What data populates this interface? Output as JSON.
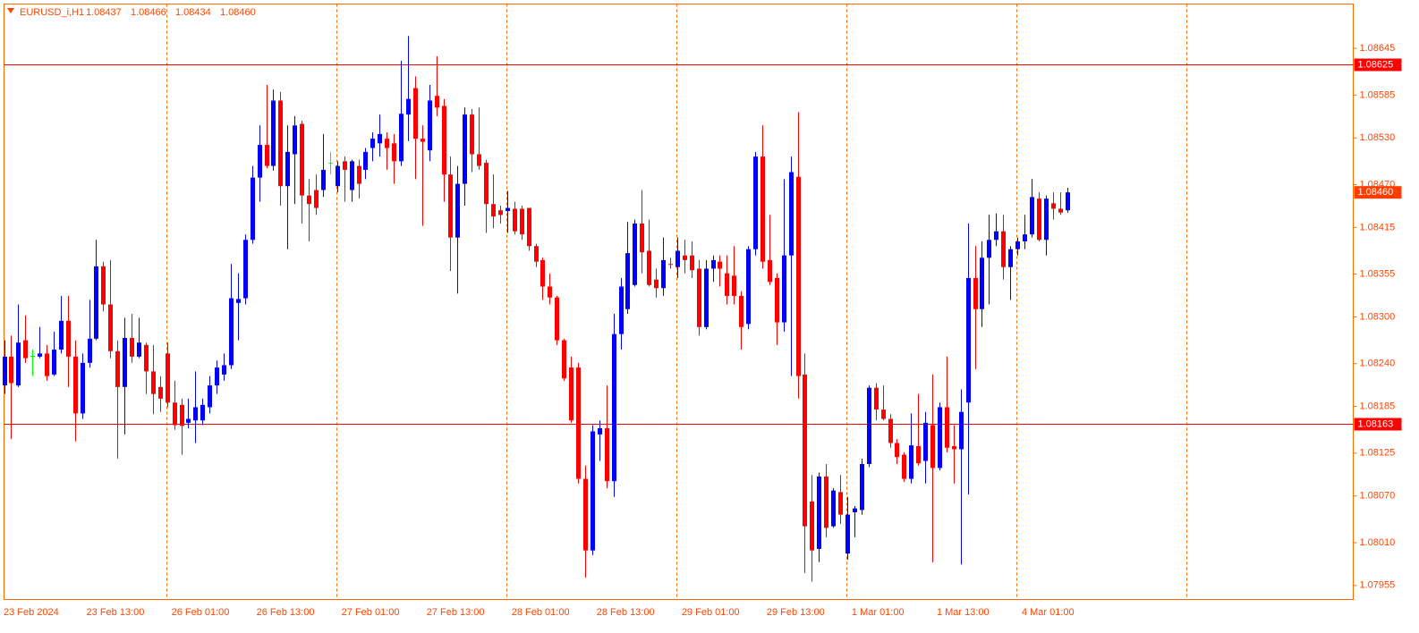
{
  "chart_data": {
    "type": "candlestick",
    "symbol": "EURUSD_i,H1",
    "ohlc_labels": [
      "1.08437",
      "1.08466",
      "1.08434",
      "1.08460"
    ],
    "up_color": "#0000ff",
    "down_color": "#ff0000",
    "doji_color": "#00ff00",
    "line_color": "#ff0000",
    "tag_color": "#ff3c00",
    "categories": [
      "23 Feb 2024",
      null,
      null,
      null,
      null,
      null,
      null,
      null,
      null,
      null,
      null,
      null,
      "23 Feb 13:00",
      null,
      null,
      null,
      null,
      null,
      null,
      null,
      null,
      null,
      null,
      null,
      "26 Feb 01:00",
      null,
      null,
      null,
      null,
      null,
      null,
      null,
      null,
      null,
      null,
      null,
      "26 Feb 13:00",
      null,
      null,
      null,
      null,
      null,
      null,
      null,
      null,
      null,
      null,
      null,
      "27 Feb 01:00",
      null,
      null,
      null,
      null,
      null,
      null,
      null,
      null,
      null,
      null,
      null,
      "27 Feb 13:00",
      null,
      null,
      null,
      null,
      null,
      null,
      null,
      null,
      null,
      null,
      null,
      "28 Feb 01:00",
      null,
      null,
      null,
      null,
      null,
      null,
      null,
      null,
      null,
      null,
      null,
      "28 Feb 13:00",
      null,
      null,
      null,
      null,
      null,
      null,
      null,
      null,
      null,
      null,
      null,
      "29 Feb 01:00",
      null,
      null,
      null,
      null,
      null,
      null,
      null,
      null,
      null,
      null,
      null,
      "29 Feb 13:00",
      null,
      null,
      null,
      null,
      null,
      null,
      null,
      null,
      null,
      null,
      null,
      "1 Mar 01:00",
      null,
      null,
      null,
      null,
      null,
      null,
      null,
      null,
      null,
      null,
      null,
      "1 Mar 13:00",
      null,
      null,
      null,
      null,
      null,
      null,
      null,
      null,
      null,
      null,
      null,
      "4 Mar 01:00",
      null,
      null,
      null,
      null,
      null,
      null
    ],
    "open": [
      1.08212,
      1.08249,
      1.08212,
      1.0827,
      1.0825,
      1.08249,
      1.08253,
      1.08226,
      1.08258,
      1.08295,
      1.08249,
      1.08176,
      1.08241,
      1.08272,
      1.08365,
      1.08316,
      1.08256,
      1.0821,
      1.08273,
      1.08249,
      1.08264,
      1.0823,
      1.0821,
      1.08253,
      1.0819,
      1.08187,
      1.08164,
      1.08167,
      1.08167,
      1.08184,
      1.08212,
      1.08226,
      1.08238,
      1.08318,
      1.08324,
      1.08399,
      1.08479,
      1.08521,
      1.08494,
      1.08578,
      1.08468,
      1.08509,
      1.08548,
      1.08456,
      1.08463,
      1.08463,
      1.08498,
      1.08468,
      1.085,
      1.08463,
      1.08494,
      1.08489,
      1.08517,
      1.08523,
      1.08529,
      1.08523,
      1.085,
      1.0856,
      1.08594,
      1.08529,
      1.08514,
      1.08584,
      1.08571,
      1.08483,
      1.08402,
      1.08471,
      1.0856,
      1.08509,
      1.08498,
      1.08445,
      1.08437,
      1.08436,
      1.08439,
      1.08439,
      1.0844,
      1.08391,
      1.08373,
      1.08339,
      1.08325,
      1.0827,
      1.08235,
      1.08235,
      1.08092,
      1.08,
      1.08149,
      1.08157,
      1.08089,
      1.08278,
      1.0831,
      1.08341,
      1.0842,
      1.08385,
      1.08348,
      1.08337,
      1.08368,
      1.08364,
      1.08379,
      1.08379,
      1.08362,
      1.08287,
      1.08362,
      1.08371,
      1.08356,
      1.08353,
      1.08327,
      1.08291,
      1.08387,
      1.08506,
      1.08373,
      1.0835,
      1.08293,
      1.08379,
      1.0848,
      1.08226,
      1.08063,
      1.08002,
      1.08095,
      1.08031,
      1.08075,
      1.07996,
      1.08049,
      1.08052,
      1.08111,
      1.08209,
      1.08181,
      1.08169,
      1.08138,
      1.08123,
      1.08092,
      1.08134,
      1.08115,
      1.08161,
      1.08106,
      1.08184,
      1.08134,
      1.0813,
      1.0819,
      1.0835,
      1.0831,
      1.08376,
      1.08399,
      1.0841,
      1.08364,
      1.08387,
      1.08397,
      1.08406,
      1.08452,
      1.08399,
      1.08446,
      1.08439,
      1.08437
    ],
    "high": [
      1.0827,
      1.08276,
      1.08316,
      1.08302,
      1.08258,
      1.08287,
      1.08264,
      1.08281,
      1.08327,
      1.08327,
      1.0827,
      1.08253,
      1.08322,
      1.08399,
      1.08371,
      1.08373,
      1.0827,
      1.08299,
      1.08304,
      1.08299,
      1.08267,
      1.08264,
      1.08224,
      1.08267,
      1.08218,
      1.08195,
      1.08195,
      1.0823,
      1.08195,
      1.08224,
      1.08244,
      1.08253,
      1.08368,
      1.08356,
      1.08406,
      1.08494,
      1.08546,
      1.08598,
      1.08592,
      1.08589,
      1.08546,
      1.08558,
      1.08552,
      1.08477,
      1.08483,
      1.08535,
      1.08512,
      1.085,
      1.08506,
      1.08502,
      1.08502,
      1.08517,
      1.08537,
      1.0856,
      1.08537,
      1.08535,
      1.08629,
      1.08661,
      1.08609,
      1.08546,
      1.08598,
      1.08635,
      1.0858,
      1.08506,
      1.08494,
      1.08569,
      1.08567,
      1.08569,
      1.08502,
      1.08483,
      1.08443,
      1.08462,
      1.08448,
      1.08443,
      1.0844,
      1.08394,
      1.08376,
      1.08356,
      1.08327,
      1.08272,
      1.08249,
      1.08241,
      1.08109,
      1.08161,
      1.08167,
      1.08212,
      1.08304,
      1.0835,
      1.08422,
      1.08425,
      1.08463,
      1.08425,
      1.08362,
      1.08402,
      1.08376,
      1.08402,
      1.08399,
      1.08397,
      1.08373,
      1.08373,
      1.08379,
      1.08379,
      1.08379,
      1.08391,
      1.08333,
      1.08391,
      1.08512,
      1.08546,
      1.08431,
      1.08356,
      1.08477,
      1.08506,
      1.08563,
      1.08253,
      1.08097,
      1.081,
      1.08111,
      1.0808,
      1.08097,
      1.08069,
      1.08057,
      1.08118,
      1.08212,
      1.08215,
      1.08212,
      1.08175,
      1.08143,
      1.08126,
      1.08176,
      1.08201,
      1.08178,
      1.08226,
      1.0819,
      1.08249,
      1.08161,
      1.08207,
      1.0842,
      1.08391,
      1.08397,
      1.08431,
      1.08433,
      1.08431,
      1.08391,
      1.08402,
      1.08431,
      1.08477,
      1.0846,
      1.08456,
      1.0846,
      1.0846,
      1.08466
    ],
    "low": [
      1.08201,
      1.08143,
      1.0821,
      1.08241,
      1.08224,
      1.08247,
      1.08218,
      1.08224,
      1.08253,
      1.0821,
      1.0814,
      1.08169,
      1.08235,
      1.0827,
      1.08307,
      1.08247,
      1.08118,
      1.08149,
      1.08241,
      1.08247,
      1.08201,
      1.08175,
      1.08178,
      1.08184,
      1.08155,
      1.08123,
      1.08157,
      1.08138,
      1.08161,
      1.08176,
      1.08201,
      1.08218,
      1.08233,
      1.0827,
      1.08316,
      1.08394,
      1.08448,
      1.08491,
      1.08488,
      1.08443,
      1.08387,
      1.08445,
      1.0842,
      1.08397,
      1.08431,
      1.08454,
      1.08483,
      1.0846,
      1.08448,
      1.08448,
      1.08452,
      1.08477,
      1.085,
      1.08506,
      1.08489,
      1.08471,
      1.08494,
      1.08526,
      1.08477,
      1.08417,
      1.085,
      1.08558,
      1.08448,
      1.08359,
      1.0833,
      1.08443,
      1.08486,
      1.08489,
      1.08408,
      1.08414,
      1.0842,
      1.08408,
      1.08406,
      1.08399,
      1.08385,
      1.08364,
      1.08322,
      1.08316,
      1.08264,
      1.08218,
      1.08164,
      1.08086,
      1.07965,
      1.07994,
      1.08115,
      1.0808,
      1.08069,
      1.08258,
      1.08304,
      1.08339,
      1.08356,
      1.08339,
      1.08325,
      1.08327,
      1.08362,
      1.0835,
      1.08356,
      1.0835,
      1.08276,
      1.08284,
      1.08345,
      1.08339,
      1.08316,
      1.08316,
      1.08258,
      1.08284,
      1.08379,
      1.08362,
      1.08341,
      1.08264,
      1.08281,
      1.08224,
      1.08195,
      1.07971,
      1.0796,
      1.07985,
      1.08017,
      1.08029,
      1.08034,
      1.07988,
      1.08017,
      1.08046,
      1.08107,
      1.08167,
      1.08167,
      1.08132,
      1.08111,
      1.08088,
      1.08086,
      1.08109,
      1.08086,
      1.07985,
      1.08103,
      1.08126,
      1.08086,
      1.07982,
      1.08072,
      1.08233,
      1.08287,
      1.08316,
      1.08391,
      1.08348,
      1.08322,
      1.08379,
      1.08387,
      1.08402,
      1.08397,
      1.08379,
      1.08425,
      1.08431,
      1.08434
    ],
    "close": [
      1.08249,
      1.08215,
      1.08267,
      1.08247,
      1.0825,
      1.08253,
      1.08224,
      1.08258,
      1.08295,
      1.08249,
      1.08176,
      1.08241,
      1.08272,
      1.08365,
      1.08316,
      1.08256,
      1.0821,
      1.08273,
      1.08249,
      1.08267,
      1.0823,
      1.08201,
      1.08195,
      1.0819,
      1.08161,
      1.0816,
      1.08169,
      1.08184,
      1.08187,
      1.08212,
      1.08235,
      1.08238,
      1.08324,
      1.08323,
      1.08399,
      1.08479,
      1.08521,
      1.08494,
      1.08578,
      1.08468,
      1.08512,
      1.08546,
      1.08456,
      1.08445,
      1.0844,
      1.08489,
      1.08498,
      1.08494,
      1.08489,
      1.085,
      1.08471,
      1.08512,
      1.08529,
      1.08535,
      1.08517,
      1.085,
      1.08561,
      1.0858,
      1.08529,
      1.08525,
      1.08578,
      1.08569,
      1.08483,
      1.08402,
      1.08471,
      1.0856,
      1.08509,
      1.08494,
      1.08445,
      1.08429,
      1.08431,
      1.0844,
      1.0841,
      1.08406,
      1.08391,
      1.08371,
      1.08339,
      1.08325,
      1.0827,
      1.08221,
      1.08167,
      1.08092,
      1.08,
      1.08153,
      1.08157,
      1.08089,
      1.08278,
      1.08339,
      1.08382,
      1.0842,
      1.08383,
      1.08341,
      1.08337,
      1.08373,
      1.08367,
      1.08385,
      1.08373,
      1.0836,
      1.08287,
      1.08362,
      1.08373,
      1.08362,
      1.08327,
      1.08327,
      1.08287,
      1.08387,
      1.08506,
      1.08371,
      1.08345,
      1.08293,
      1.08379,
      1.08486,
      1.08224,
      1.08031,
      1.08,
      1.08095,
      1.08029,
      1.08077,
      1.08046,
      1.08046,
      1.08054,
      1.08111,
      1.08209,
      1.08181,
      1.08169,
      1.08138,
      1.0812,
      1.08092,
      1.08135,
      1.08112,
      1.08164,
      1.08106,
      1.08184,
      1.08132,
      1.0813,
      1.08178,
      1.0835,
      1.0831,
      1.08376,
      1.08399,
      1.0841,
      1.08364,
      1.08387,
      1.08397,
      1.08406,
      1.08454,
      1.08399,
      1.08452,
      1.08439,
      1.08434,
      1.0846
    ],
    "ylim": [
      1.07937,
      1.08702
    ],
    "yticks": [
      1.08645,
      1.08585,
      {
        "value": 1.0853,
        "label": "1.08530"
      },
      {
        "value": 1.0847,
        "label": "1.08470"
      },
      1.08415,
      1.08355,
      {
        "value": 1.083,
        "label": "1.08300"
      },
      {
        "value": 1.0824,
        "label": "1.08240"
      },
      1.08185,
      1.08125,
      {
        "value": 1.0807,
        "label": "1.08070"
      },
      {
        "value": 1.0801,
        "label": "1.08010"
      },
      1.07955
    ],
    "hlines": [
      1.08625,
      1.08163
    ],
    "last_price": {
      "value": 1.0846,
      "label": "1.08460"
    }
  }
}
